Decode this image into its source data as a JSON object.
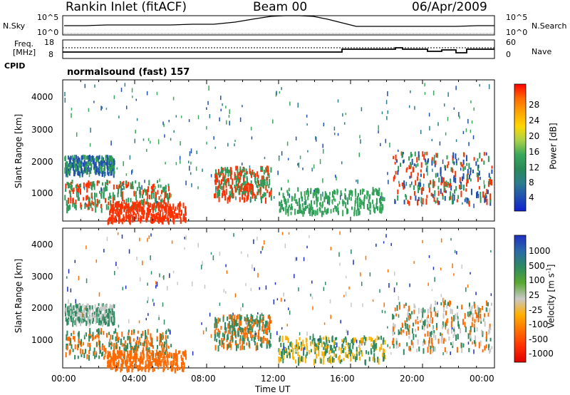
{
  "header": {
    "station": "Rankin Inlet (fitACF)",
    "beam": "Beam 00",
    "date": "06/Apr/2009"
  },
  "noise_panel": {
    "left_label": "N.Sky",
    "left_ticks": [
      "10^5",
      "10^0"
    ],
    "right_label": "N.Search",
    "right_ticks": [
      "10^5",
      "10^0"
    ]
  },
  "freq_panel": {
    "left_label_1": "Freq.",
    "left_label_2": "[MHz]",
    "left_ticks": [
      "18",
      "8"
    ],
    "right_label": "Nave",
    "right_ticks": [
      "60",
      "0"
    ]
  },
  "cpid_panel": {
    "label": "CPID",
    "text": "normalsound (fast) 157"
  },
  "chart_data": [
    {
      "type": "heatmap",
      "name": "power",
      "ylabel": "Slant Range [km]",
      "xlabel": "",
      "y_ticks": [
        "1000",
        "2000",
        "3000",
        "4000"
      ],
      "ylim": [
        180,
        4500
      ],
      "colorbar_label": "Power [dB]",
      "colorbar_ticks": [
        "28",
        "24",
        "20",
        "16",
        "12",
        "8",
        "4"
      ],
      "colorbar_colors": [
        "#ff0000",
        "#ff6a00",
        "#ffa500",
        "#ffd700",
        "#a8d24a",
        "#3aa85a",
        "#2a8a5a",
        "#2c7e8c",
        "#2050b0",
        "#1020d0"
      ]
    },
    {
      "type": "heatmap",
      "name": "velocity",
      "ylabel": "Slant Range [km]",
      "xlabel": "Time UT",
      "y_ticks": [
        "1000",
        "2000",
        "3000",
        "4000"
      ],
      "ylim": [
        180,
        4500
      ],
      "x_ticks": [
        "00:00",
        "04:00",
        "08:00",
        "12:00",
        "16:00",
        "20:00",
        "00:00"
      ],
      "colorbar_label": "Velocity [m s",
      "colorbar_label_sup": "-1",
      "colorbar_ticks": [
        "1000",
        "500",
        "100",
        "25",
        "-25",
        "-100",
        "-500",
        "-1000"
      ],
      "colorbar_colors": [
        "#2030c0",
        "#2a6aa8",
        "#2e8a60",
        "#5aa830",
        "#c8c8c8",
        "#ffb000",
        "#ff7000",
        "#ff3000",
        "#e00000"
      ]
    }
  ]
}
